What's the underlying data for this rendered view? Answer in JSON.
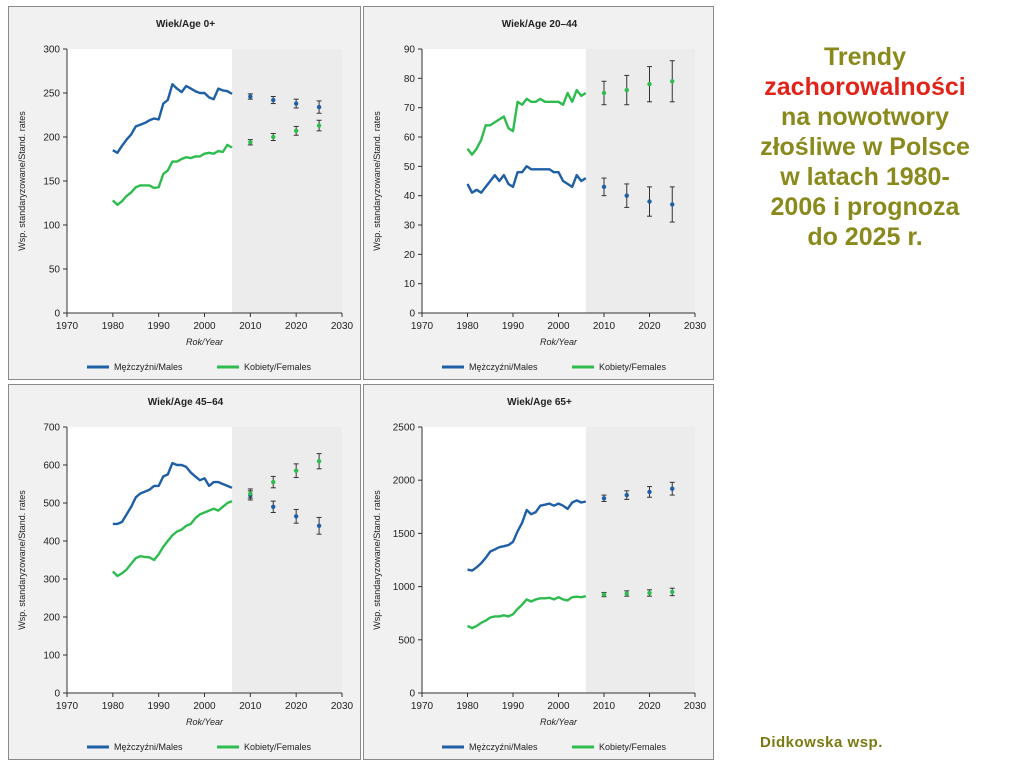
{
  "side_title": {
    "line1": "Trendy",
    "line2": "zachorowalności",
    "line3": "na nowotwory",
    "line4": "złośliwe w Polsce",
    "line5": "w latach 1980-",
    "line6": "2006 i prognoza",
    "line7": "do 2025 r."
  },
  "credit": "Didkowska  wsp.",
  "colors": {
    "males": "#1f5fa6",
    "females": "#2ebc4f",
    "forecast_bg": "#ececec",
    "plot_bg": "#ffffff",
    "panel_bg": "#f1f1f1"
  },
  "legend": {
    "males": "Mężczyźni/Males",
    "females": "Kobiety/Females"
  },
  "chart_data": [
    {
      "type": "line",
      "title": "Wiek/Age 0+",
      "xlabel": "Rok/Year",
      "ylabel": "Wsp. standaryzowane/Stand. rates",
      "xlim": [
        1970,
        2030
      ],
      "ylim": [
        0,
        300
      ],
      "xticks": [
        1970,
        1980,
        1990,
        2000,
        2010,
        2020,
        2030
      ],
      "yticks": [
        0,
        50,
        100,
        150,
        200,
        250,
        300
      ],
      "forecast_start": 2006,
      "series": [
        {
          "name": "Mężczyźni/Males",
          "x": [
            1980,
            1981,
            1982,
            1983,
            1984,
            1985,
            1986,
            1987,
            1988,
            1989,
            1990,
            1991,
            1992,
            1993,
            1994,
            1995,
            1996,
            1997,
            1998,
            1999,
            2000,
            2001,
            2002,
            2003,
            2004,
            2005,
            2006
          ],
          "values": [
            185,
            182,
            190,
            197,
            203,
            212,
            214,
            216,
            219,
            221,
            220,
            238,
            242,
            260,
            255,
            251,
            258,
            255,
            252,
            250,
            250,
            245,
            243,
            255,
            253,
            252,
            249
          ],
          "forecast": {
            "x": [
              2010,
              2015,
              2020,
              2025
            ],
            "values": [
              246,
              242,
              238,
              234
            ],
            "err": [
              3,
              4,
              5,
              7
            ]
          }
        },
        {
          "name": "Kobiety/Females",
          "x": [
            1980,
            1981,
            1982,
            1983,
            1984,
            1985,
            1986,
            1987,
            1988,
            1989,
            1990,
            1991,
            1992,
            1993,
            1994,
            1995,
            1996,
            1997,
            1998,
            1999,
            2000,
            2001,
            2002,
            2003,
            2004,
            2005,
            2006
          ],
          "values": [
            128,
            123,
            127,
            133,
            137,
            143,
            145,
            145,
            145,
            142,
            143,
            158,
            162,
            172,
            172,
            175,
            177,
            176,
            178,
            178,
            181,
            182,
            181,
            184,
            183,
            191,
            188
          ],
          "forecast": {
            "x": [
              2010,
              2015,
              2020,
              2025
            ],
            "values": [
              194,
              200,
              207,
              213
            ],
            "err": [
              3,
              4,
              5,
              6
            ]
          }
        }
      ]
    },
    {
      "type": "line",
      "title": "Wiek/Age 20–44",
      "xlabel": "Rok/Year",
      "ylabel": "Wsp. standaryzowane/Stand. rates",
      "xlim": [
        1970,
        2030
      ],
      "ylim": [
        0,
        90
      ],
      "xticks": [
        1970,
        1980,
        1990,
        2000,
        2010,
        2020,
        2030
      ],
      "yticks": [
        0,
        10,
        20,
        30,
        40,
        50,
        60,
        70,
        80,
        90
      ],
      "forecast_start": 2006,
      "series": [
        {
          "name": "Mężczyźni/Males",
          "x": [
            1980,
            1981,
            1982,
            1983,
            1984,
            1985,
            1986,
            1987,
            1988,
            1989,
            1990,
            1991,
            1992,
            1993,
            1994,
            1995,
            1996,
            1997,
            1998,
            1999,
            2000,
            2001,
            2002,
            2003,
            2004,
            2005,
            2006
          ],
          "values": [
            44,
            41,
            42,
            41,
            43,
            45,
            47,
            45,
            47,
            44,
            43,
            48,
            48,
            50,
            49,
            49,
            49,
            49,
            49,
            48,
            48,
            45,
            44,
            43,
            47,
            45,
            46
          ],
          "forecast": {
            "x": [
              2010,
              2015,
              2020,
              2025
            ],
            "values": [
              43,
              40,
              38,
              37
            ],
            "err": [
              3,
              4,
              5,
              6
            ]
          }
        },
        {
          "name": "Kobiety/Females",
          "x": [
            1980,
            1981,
            1982,
            1983,
            1984,
            1985,
            1986,
            1987,
            1988,
            1989,
            1990,
            1991,
            1992,
            1993,
            1994,
            1995,
            1996,
            1997,
            1998,
            1999,
            2000,
            2001,
            2002,
            2003,
            2004,
            2005,
            2006
          ],
          "values": [
            56,
            54,
            56,
            59,
            64,
            64,
            65,
            66,
            67,
            63,
            62,
            72,
            71,
            73,
            72,
            72,
            73,
            72,
            72,
            72,
            72,
            71,
            75,
            72,
            76,
            74,
            75
          ],
          "forecast": {
            "x": [
              2010,
              2015,
              2020,
              2025
            ],
            "values": [
              75,
              76,
              78,
              79
            ],
            "err": [
              4,
              5,
              6,
              7
            ]
          }
        }
      ]
    },
    {
      "type": "line",
      "title": "Wiek/Age 45–64",
      "xlabel": "Rok/Year",
      "ylabel": "Wsp. standaryzowane/Stand. rates",
      "xlim": [
        1970,
        2030
      ],
      "ylim": [
        0,
        700
      ],
      "xticks": [
        1970,
        1980,
        1990,
        2000,
        2010,
        2020,
        2030
      ],
      "yticks": [
        0,
        100,
        200,
        300,
        400,
        500,
        600,
        700
      ],
      "forecast_start": 2006,
      "series": [
        {
          "name": "Mężczyźni/Males",
          "x": [
            1980,
            1981,
            1982,
            1983,
            1984,
            1985,
            1986,
            1987,
            1988,
            1989,
            1990,
            1991,
            1992,
            1993,
            1994,
            1995,
            1996,
            1997,
            1998,
            1999,
            2000,
            2001,
            2002,
            2003,
            2004,
            2005,
            2006
          ],
          "values": [
            445,
            445,
            450,
            470,
            490,
            515,
            525,
            530,
            535,
            545,
            545,
            570,
            575,
            605,
            600,
            600,
            595,
            580,
            570,
            560,
            565,
            545,
            555,
            555,
            550,
            545,
            540
          ],
          "forecast": {
            "x": [
              2010,
              2015,
              2020,
              2025
            ],
            "values": [
              520,
              490,
              465,
              440
            ],
            "err": [
              12,
              15,
              18,
              22
            ]
          }
        },
        {
          "name": "Kobiety/Females",
          "x": [
            1980,
            1981,
            1982,
            1983,
            1984,
            1985,
            1986,
            1987,
            1988,
            1989,
            1990,
            1991,
            1992,
            1993,
            1994,
            1995,
            1996,
            1997,
            1998,
            1999,
            2000,
            2001,
            2002,
            2003,
            2004,
            2005,
            2006
          ],
          "values": [
            320,
            308,
            315,
            325,
            340,
            355,
            360,
            358,
            357,
            350,
            365,
            385,
            400,
            415,
            425,
            430,
            440,
            445,
            460,
            470,
            475,
            480,
            485,
            480,
            490,
            500,
            505
          ],
          "forecast": {
            "x": [
              2010,
              2015,
              2020,
              2025
            ],
            "values": [
              525,
              555,
              585,
              610
            ],
            "err": [
              12,
              15,
              18,
              20
            ]
          }
        }
      ]
    },
    {
      "type": "line",
      "title": "Wiek/Age 65+",
      "xlabel": "Rok/Year",
      "ylabel": "Wsp. standaryzowane/Stand. rates",
      "xlim": [
        1970,
        2030
      ],
      "ylim": [
        0,
        2500
      ],
      "xticks": [
        1970,
        1980,
        1990,
        2000,
        2010,
        2020,
        2030
      ],
      "yticks": [
        0,
        500,
        1000,
        1500,
        2000,
        2500
      ],
      "forecast_start": 2006,
      "series": [
        {
          "name": "Mężczyźni/Males",
          "x": [
            1980,
            1981,
            1982,
            1983,
            1984,
            1985,
            1986,
            1987,
            1988,
            1989,
            1990,
            1991,
            1992,
            1993,
            1994,
            1995,
            1996,
            1997,
            1998,
            1999,
            2000,
            2001,
            2002,
            2003,
            2004,
            2005,
            2006
          ],
          "values": [
            1160,
            1150,
            1180,
            1220,
            1270,
            1330,
            1350,
            1370,
            1380,
            1390,
            1420,
            1520,
            1600,
            1720,
            1680,
            1700,
            1760,
            1770,
            1780,
            1760,
            1780,
            1760,
            1730,
            1790,
            1810,
            1790,
            1800
          ],
          "forecast": {
            "x": [
              2010,
              2015,
              2020,
              2025
            ],
            "values": [
              1830,
              1860,
              1890,
              1920
            ],
            "err": [
              30,
              40,
              50,
              60
            ]
          }
        },
        {
          "name": "Kobiety/Females",
          "x": [
            1980,
            1981,
            1982,
            1983,
            1984,
            1985,
            1986,
            1987,
            1988,
            1989,
            1990,
            1991,
            1992,
            1993,
            1994,
            1995,
            1996,
            1997,
            1998,
            1999,
            2000,
            2001,
            2002,
            2003,
            2004,
            2005,
            2006
          ],
          "values": [
            630,
            610,
            630,
            660,
            680,
            710,
            720,
            720,
            730,
            720,
            740,
            790,
            830,
            880,
            860,
            880,
            890,
            890,
            895,
            880,
            900,
            880,
            870,
            900,
            905,
            900,
            910
          ],
          "forecast": {
            "x": [
              2010,
              2015,
              2020,
              2025
            ],
            "values": [
              925,
              935,
              940,
              950
            ],
            "err": [
              20,
              25,
              30,
              35
            ]
          }
        }
      ]
    }
  ]
}
